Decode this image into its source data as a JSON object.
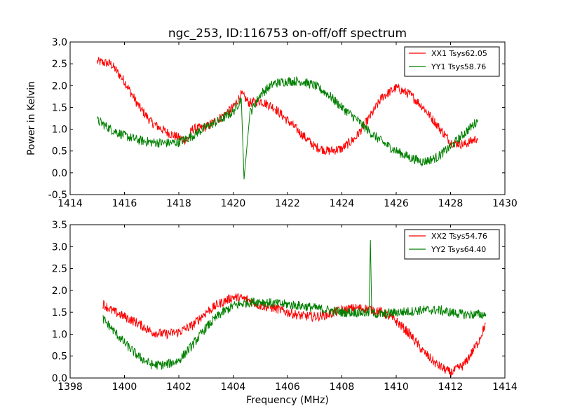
{
  "title": "ngc_253, ID:116753 on-off/off spectrum",
  "chart_data": [
    {
      "type": "line",
      "ylabel": "Power in Kelvin",
      "xlabel": "",
      "xlim": [
        1414,
        1430
      ],
      "ylim": [
        -0.5,
        3.0
      ],
      "xticks": [
        1414,
        1416,
        1418,
        1420,
        1422,
        1424,
        1426,
        1428,
        1430
      ],
      "yticks": [
        -0.5,
        0.0,
        0.5,
        1.0,
        1.5,
        2.0,
        2.5,
        3.0
      ],
      "grid": false,
      "legend": "top-right",
      "series": [
        {
          "name": "XX1 Tsys62.05",
          "color": "#ff0000",
          "points": [
            [
              1415.0,
              2.55
            ],
            [
              1415.5,
              2.5
            ],
            [
              1416.0,
              2.1
            ],
            [
              1416.5,
              1.55
            ],
            [
              1417.0,
              1.15
            ],
            [
              1417.5,
              0.95
            ],
            [
              1418.0,
              0.8
            ],
            [
              1418.3,
              0.75
            ],
            [
              1418.5,
              1.0
            ],
            [
              1419.0,
              1.05
            ],
            [
              1419.5,
              1.25
            ],
            [
              1420.0,
              1.5
            ],
            [
              1420.3,
              1.8
            ],
            [
              1420.6,
              1.6
            ],
            [
              1421.0,
              1.65
            ],
            [
              1421.5,
              1.5
            ],
            [
              1422.0,
              1.2
            ],
            [
              1422.5,
              0.9
            ],
            [
              1423.0,
              0.6
            ],
            [
              1423.5,
              0.5
            ],
            [
              1424.0,
              0.55
            ],
            [
              1424.5,
              0.8
            ],
            [
              1425.0,
              1.25
            ],
            [
              1425.5,
              1.75
            ],
            [
              1426.0,
              1.95
            ],
            [
              1426.5,
              1.8
            ],
            [
              1427.0,
              1.5
            ],
            [
              1427.5,
              1.1
            ],
            [
              1428.0,
              0.7
            ],
            [
              1428.5,
              0.65
            ],
            [
              1429.0,
              0.8
            ]
          ]
        },
        {
          "name": "YY1 Tsys58.76",
          "color": "#008000",
          "points": [
            [
              1415.0,
              1.2
            ],
            [
              1415.5,
              1.0
            ],
            [
              1416.0,
              0.85
            ],
            [
              1416.5,
              0.75
            ],
            [
              1417.0,
              0.7
            ],
            [
              1417.5,
              0.68
            ],
            [
              1418.0,
              0.7
            ],
            [
              1418.5,
              0.85
            ],
            [
              1419.0,
              1.05
            ],
            [
              1419.5,
              1.2
            ],
            [
              1420.0,
              1.4
            ],
            [
              1420.3,
              1.7
            ],
            [
              1420.4,
              -0.15
            ],
            [
              1420.6,
              1.35
            ],
            [
              1421.0,
              1.8
            ],
            [
              1421.5,
              2.05
            ],
            [
              1422.0,
              2.1
            ],
            [
              1422.5,
              2.1
            ],
            [
              1423.0,
              2.0
            ],
            [
              1423.5,
              1.8
            ],
            [
              1424.0,
              1.5
            ],
            [
              1424.5,
              1.25
            ],
            [
              1425.0,
              0.95
            ],
            [
              1425.5,
              0.7
            ],
            [
              1426.0,
              0.5
            ],
            [
              1426.5,
              0.35
            ],
            [
              1427.0,
              0.25
            ],
            [
              1427.5,
              0.35
            ],
            [
              1428.0,
              0.6
            ],
            [
              1428.5,
              0.9
            ],
            [
              1429.0,
              1.2
            ]
          ]
        }
      ]
    },
    {
      "type": "line",
      "ylabel": "",
      "xlabel": "Frequency (MHz)",
      "xlim": [
        1398,
        1414
      ],
      "ylim": [
        0.0,
        3.5
      ],
      "xticks": [
        1398,
        1400,
        1402,
        1404,
        1406,
        1408,
        1410,
        1412,
        1414
      ],
      "yticks": [
        0.0,
        0.5,
        1.0,
        1.5,
        2.0,
        2.5,
        3.0,
        3.5
      ],
      "grid": false,
      "legend": "top-right",
      "series": [
        {
          "name": "XX2 Tsys54.76",
          "color": "#ff0000",
          "points": [
            [
              1399.2,
              1.7
            ],
            [
              1399.5,
              1.55
            ],
            [
              1400.0,
              1.4
            ],
            [
              1400.5,
              1.25
            ],
            [
              1401.0,
              1.05
            ],
            [
              1401.5,
              1.0
            ],
            [
              1402.0,
              1.05
            ],
            [
              1402.5,
              1.2
            ],
            [
              1403.0,
              1.5
            ],
            [
              1403.5,
              1.7
            ],
            [
              1404.0,
              1.85
            ],
            [
              1404.5,
              1.8
            ],
            [
              1405.0,
              1.65
            ],
            [
              1405.5,
              1.6
            ],
            [
              1406.0,
              1.5
            ],
            [
              1406.5,
              1.42
            ],
            [
              1407.0,
              1.4
            ],
            [
              1407.5,
              1.45
            ],
            [
              1408.0,
              1.55
            ],
            [
              1408.5,
              1.6
            ],
            [
              1409.0,
              1.58
            ],
            [
              1409.5,
              1.5
            ],
            [
              1410.0,
              1.3
            ],
            [
              1410.5,
              1.0
            ],
            [
              1411.0,
              0.6
            ],
            [
              1411.5,
              0.3
            ],
            [
              1412.0,
              0.12
            ],
            [
              1412.5,
              0.3
            ],
            [
              1413.0,
              0.8
            ],
            [
              1413.3,
              1.25
            ]
          ]
        },
        {
          "name": "YY2 Tsys64.40",
          "color": "#008000",
          "points": [
            [
              1399.2,
              1.35
            ],
            [
              1399.5,
              1.15
            ],
            [
              1400.0,
              0.8
            ],
            [
              1400.5,
              0.5
            ],
            [
              1401.0,
              0.3
            ],
            [
              1401.5,
              0.3
            ],
            [
              1402.0,
              0.4
            ],
            [
              1402.5,
              0.75
            ],
            [
              1403.0,
              1.15
            ],
            [
              1403.5,
              1.45
            ],
            [
              1404.0,
              1.65
            ],
            [
              1404.5,
              1.72
            ],
            [
              1405.0,
              1.75
            ],
            [
              1405.5,
              1.7
            ],
            [
              1406.0,
              1.68
            ],
            [
              1406.5,
              1.65
            ],
            [
              1407.0,
              1.6
            ],
            [
              1407.5,
              1.55
            ],
            [
              1408.0,
              1.5
            ],
            [
              1408.5,
              1.5
            ],
            [
              1409.0,
              1.48
            ],
            [
              1409.05,
              3.15
            ],
            [
              1409.1,
              1.48
            ],
            [
              1409.5,
              1.45
            ],
            [
              1410.0,
              1.5
            ],
            [
              1410.5,
              1.52
            ],
            [
              1411.0,
              1.55
            ],
            [
              1411.5,
              1.55
            ],
            [
              1412.0,
              1.5
            ],
            [
              1412.5,
              1.45
            ],
            [
              1413.0,
              1.45
            ],
            [
              1413.3,
              1.45
            ]
          ]
        }
      ]
    }
  ]
}
